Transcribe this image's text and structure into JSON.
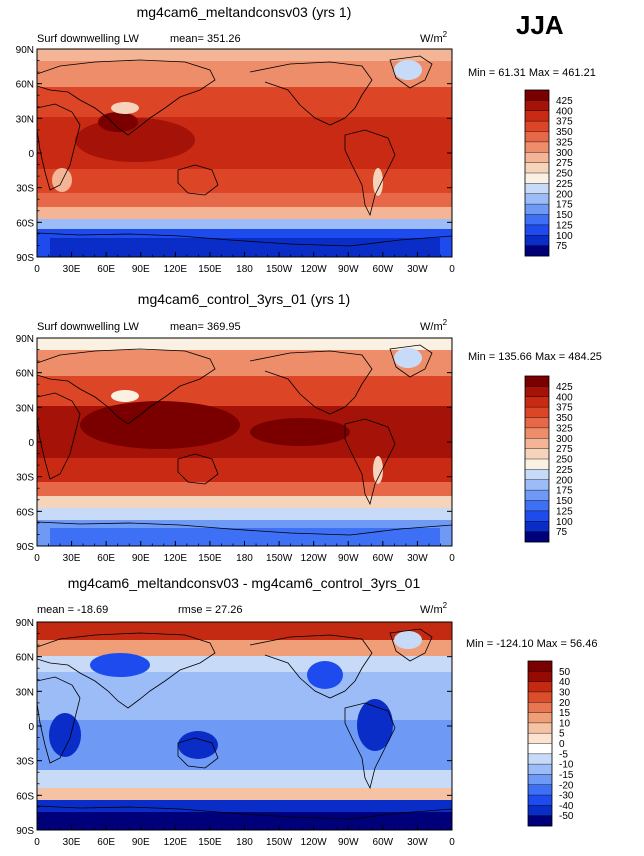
{
  "season": "JJA",
  "x_tick_labels": [
    "0",
    "30E",
    "60E",
    "90E",
    "120E",
    "150E",
    "180",
    "150W",
    "120W",
    "90W",
    "60W",
    "30W",
    "0"
  ],
  "y_tick_labels": [
    "90N",
    "60N",
    "30N",
    "0",
    "30S",
    "60S",
    "90S"
  ],
  "colors": {
    "abs_palette": [
      "#00007a",
      "#0a2dc8",
      "#1e4bee",
      "#3d70f4",
      "#6e9af6",
      "#9cbcf8",
      "#c7dbf9",
      "#fbf1e3",
      "#f6d3bb",
      "#f3b596",
      "#ee8d6a",
      "#e76848",
      "#dd4527",
      "#c82a14",
      "#a51208",
      "#7a0000"
    ],
    "diff_palette": [
      "#00007a",
      "#0a2dc8",
      "#1e4bee",
      "#3d70f4",
      "#6e9af6",
      "#9cbcf8",
      "#c7dbf9",
      "#ffffff",
      "#fbe3d0",
      "#f6c2a4",
      "#f09e78",
      "#e87650",
      "#db4d2c",
      "#c42a12",
      "#960a04",
      "#7a0000"
    ]
  },
  "panels": [
    {
      "title": "mg4cam6_meltandconsv03 (yrs 1)",
      "left_label": "Surf downwelling LW",
      "mean_text": "mean= 351.26",
      "units": "W/m",
      "units_sup": "2",
      "min_text": "Min =  61.31 Max = 461.21",
      "colorbar_labels": [
        "425",
        "400",
        "375",
        "350",
        "325",
        "300",
        "275",
        "250",
        "225",
        "200",
        "175",
        "150",
        "125",
        "100",
        "75"
      ]
    },
    {
      "title": "mg4cam6_control_3yrs_01 (yrs 1)",
      "left_label": "Surf downwelling LW",
      "mean_text": "mean= 369.95",
      "units": "W/m",
      "units_sup": "2",
      "min_text": "Min = 135.66 Max = 484.25",
      "colorbar_labels": [
        "425",
        "400",
        "375",
        "350",
        "325",
        "300",
        "275",
        "250",
        "225",
        "200",
        "175",
        "150",
        "125",
        "100",
        "75"
      ]
    },
    {
      "title": "mg4cam6_meltandconsv03 - mg4cam6_control_3yrs_01",
      "left_label": "mean = -18.69",
      "mean_text": "rmse =  27.26",
      "units": "W/m",
      "units_sup": "2",
      "min_text": "Min = -124.10 Max =  56.46",
      "colorbar_labels": [
        "50",
        "40",
        "30",
        "20",
        "15",
        "10",
        "5",
        "0",
        "-5",
        "-10",
        "-15",
        "-20",
        "-30",
        "-40",
        "-50"
      ]
    }
  ]
}
